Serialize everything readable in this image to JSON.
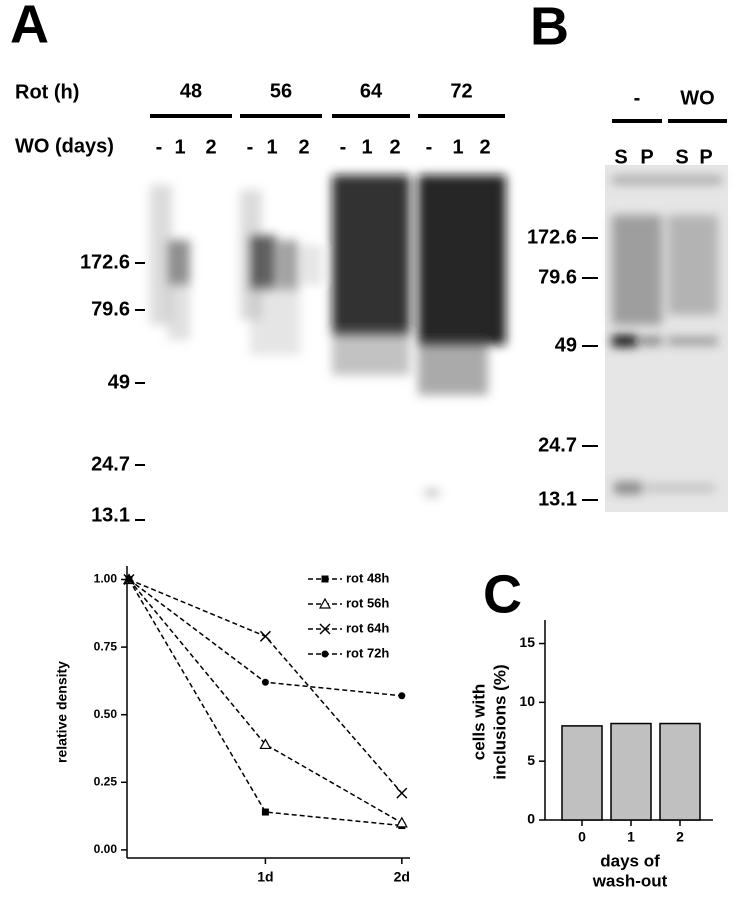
{
  "panel_labels": [
    "A",
    "B",
    "C"
  ],
  "blot_a": {
    "row_labels": [
      "Rot (h)",
      "WO (days)"
    ],
    "groups": [
      "48",
      "56",
      "64",
      "72"
    ],
    "lanes": [
      "-",
      "1",
      "2",
      "-",
      "1",
      "2",
      "-",
      "1",
      "2",
      "-",
      "1",
      "2"
    ],
    "markers": [
      "172.6",
      "79.6",
      "49",
      "24.7",
      "13.1"
    ]
  },
  "blot_b": {
    "groups": [
      "-",
      "WO"
    ],
    "lanes": [
      "S",
      "P",
      "S",
      "P"
    ],
    "markers": [
      "172.6",
      "79.6",
      "49",
      "24.7",
      "13.1"
    ]
  },
  "chart_data": [
    {
      "type": "line",
      "ylabel": "relative density",
      "x": [
        0,
        1,
        2
      ],
      "xlim": [
        0,
        2.06
      ],
      "xticks": [
        {
          "value": 1,
          "label": "1d"
        },
        {
          "value": 2,
          "label": "2d"
        }
      ],
      "ylim": [
        -0.03,
        1.05
      ],
      "yticks": [
        {
          "value": 0,
          "label": "0.00"
        },
        {
          "value": 0.25,
          "label": "0.25"
        },
        {
          "value": 0.5,
          "label": "0.50"
        },
        {
          "value": 0.75,
          "label": "0.75"
        },
        {
          "value": 1,
          "label": "1.00"
        }
      ],
      "legend": "upper right",
      "series": [
        {
          "name": "rot 48h",
          "color": "#000000",
          "marker": "square",
          "values": [
            1.0,
            0.14,
            0.09
          ]
        },
        {
          "name": "rot 56h",
          "color": "#000000",
          "marker": "triangle",
          "values": [
            1.0,
            0.39,
            0.1
          ]
        },
        {
          "name": "rot 64h",
          "color": "#000000",
          "marker": "x",
          "values": [
            1.0,
            0.79,
            0.21
          ]
        },
        {
          "name": "rot 72h",
          "color": "#000000",
          "marker": "circle",
          "values": [
            1.0,
            0.62,
            0.57
          ]
        }
      ]
    },
    {
      "type": "bar",
      "ylabel": [
        "cells with",
        "inclusions (%)"
      ],
      "xlabel": [
        "days of",
        "wash-out"
      ],
      "categories": [
        "0",
        "1",
        "2"
      ],
      "values": [
        8.0,
        8.2,
        8.2
      ],
      "color": "#c0c0c0",
      "ylim": [
        0,
        17
      ],
      "yticks": [
        0,
        5,
        10,
        15
      ]
    }
  ]
}
